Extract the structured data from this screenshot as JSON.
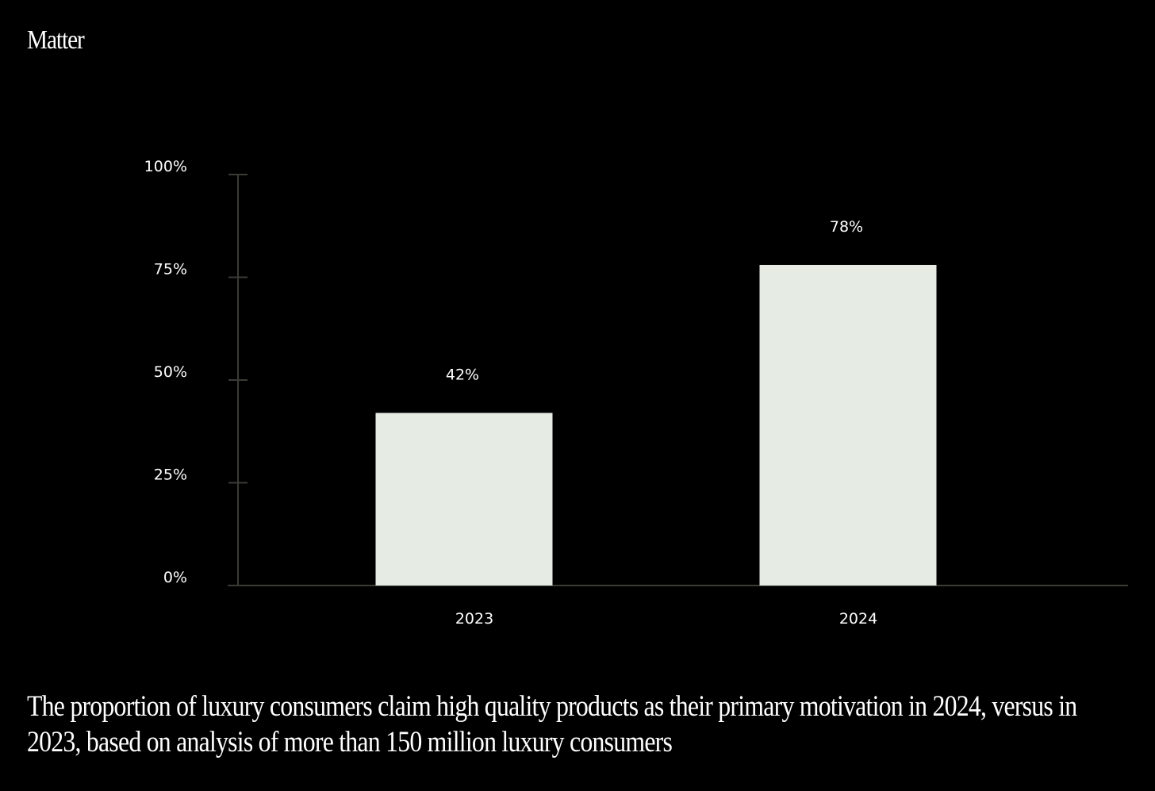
{
  "brand": "Matter",
  "caption": "The proportion of luxury consumers claim high quality products as their primary motivation in 2024, versus in 2023, based on analysis of more than 150 million luxury consumers",
  "colors": {
    "background": "#000000",
    "bar": "#e6ebe4",
    "axis": "#3a3a36",
    "text": "#ffffff"
  },
  "chart_data": {
    "type": "bar",
    "categories": [
      "2023",
      "2024"
    ],
    "values": [
      42,
      78
    ],
    "data_labels": [
      "42%",
      "78%"
    ],
    "ylim": [
      0,
      100
    ],
    "yticks": [
      0,
      25,
      50,
      75,
      100
    ],
    "ytick_labels": [
      "0%",
      "25%",
      "50%",
      "75%",
      "100%"
    ],
    "grid": false,
    "legend": "none"
  }
}
